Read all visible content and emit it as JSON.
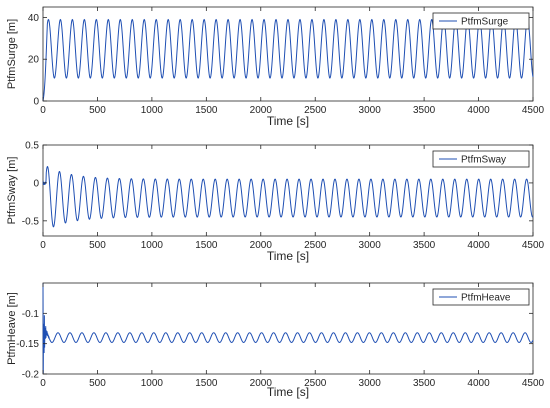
{
  "chart_data": [
    {
      "type": "line",
      "series": [
        {
          "name": "PtfmSurge"
        }
      ],
      "xlabel": "Time [s]",
      "ylabel": "PtfmSurge [m]",
      "xlim": [
        0,
        4500
      ],
      "ylim": [
        0,
        45
      ],
      "xticks": [
        0,
        500,
        1000,
        1500,
        2000,
        2500,
        3000,
        3500,
        4000,
        4500
      ],
      "yticks": [
        0,
        20,
        40
      ],
      "legend": "top-right",
      "grid": false,
      "signal": {
        "mean": 25,
        "amplitude": 14,
        "period_s": 110,
        "initial_value": 0,
        "final_value": 29
      }
    },
    {
      "type": "line",
      "series": [
        {
          "name": "PtfmSway"
        }
      ],
      "xlabel": "Time [s]",
      "ylabel": "PtfmSway [m]",
      "xlim": [
        0,
        4500
      ],
      "ylim": [
        -0.7,
        0.5
      ],
      "xticks": [
        0,
        500,
        1000,
        1500,
        2000,
        2500,
        3000,
        3500,
        4000,
        4500
      ],
      "yticks": [
        -0.5,
        0,
        0.5
      ],
      "legend": "top-right",
      "grid": false,
      "signal": {
        "mean": -0.2,
        "amplitude": 0.25,
        "period_s": 110,
        "transient_amplitude": 0.45,
        "final_value": -0.43
      }
    },
    {
      "type": "line",
      "series": [
        {
          "name": "PtfmHeave"
        }
      ],
      "xlabel": "Time [s]",
      "ylabel": "PtfmHeave [m]",
      "xlim": [
        0,
        4500
      ],
      "ylim": [
        -0.2,
        -0.05
      ],
      "xticks": [
        0,
        500,
        1000,
        1500,
        2000,
        2500,
        3000,
        3500,
        4000,
        4500
      ],
      "yticks": [
        -0.2,
        -0.15,
        -0.1
      ],
      "legend": "top-right",
      "grid": false,
      "signal": {
        "mean": -0.14,
        "amplitude": 0.008,
        "period_s": 110,
        "initial_value": -0.05
      }
    }
  ],
  "colors": {
    "line": "#1f4fb3",
    "axis": "#262626"
  }
}
